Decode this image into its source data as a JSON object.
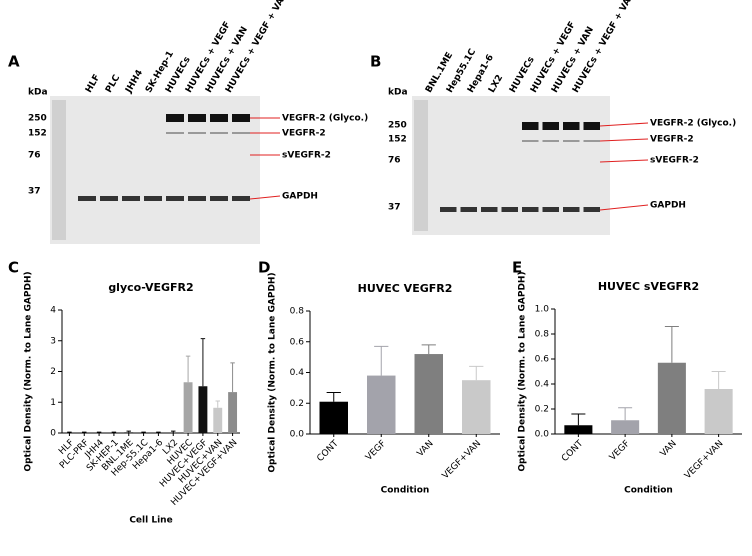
{
  "panel_labels": [
    "A",
    "B",
    "C",
    "D",
    "E"
  ],
  "blots": [
    {
      "lanes": [
        "HLF",
        "PLC",
        "JHH4",
        "SK-Hep-1",
        "HUVECs",
        "HUVECs + VEGF",
        "HUVECs + VAN",
        "HUVECs + VEGF + VAN"
      ],
      "kda_title": "kDa",
      "kda": [
        "250",
        "152",
        "76",
        "37"
      ],
      "bands": [
        "VEGFR-2 (Glyco.)",
        "VEGFR-2",
        "sVEGFR-2",
        "GAPDH"
      ]
    },
    {
      "lanes": [
        "BNL.1ME",
        "Hep55.1C",
        "Hepa1-6",
        "LX2",
        "HUVECs",
        "HUVECs + VEGF",
        "HUVECs + VAN",
        "HUVECs + VEGF + VAN"
      ],
      "kda_title": "kDa",
      "kda": [
        "250",
        "152",
        "76",
        "37"
      ],
      "bands": [
        "VEGFR-2 (Glyco.)",
        "VEGFR-2",
        "sVEGFR-2",
        "GAPDH"
      ]
    }
  ],
  "chart_data": [
    {
      "type": "bar",
      "title": "glyco-VEGFR2",
      "y_label": "Optical Density (Norm. to Lane GAPDH)",
      "x_label": "Cell Line",
      "categories": [
        "HLF",
        "PLC-PRF",
        "JHH4",
        "SK-HEP-1",
        "BNL.1ME",
        "Hep-55.1C",
        "Hepa1-6",
        "LX2",
        "HUVEC",
        "HUVEC+VEGF",
        "HUVEC+VAN",
        "HUVEC+VEGF+VAN"
      ],
      "values": [
        0.01,
        0.01,
        0.01,
        0.01,
        0.02,
        0.01,
        0.01,
        0.01,
        1.65,
        1.52,
        0.82,
        1.33
      ],
      "errors": [
        0.02,
        0.02,
        0.02,
        0.02,
        0.04,
        0.02,
        0.02,
        0.05,
        0.85,
        1.55,
        0.22,
        0.95
      ],
      "colors": [
        "#000000",
        "#000000",
        "#000000",
        "#000000",
        "#000000",
        "#000000",
        "#000000",
        "#000000",
        "#a6a6a6",
        "#111111",
        "#c8c8c8",
        "#8c8c8c"
      ],
      "ylim": [
        0,
        4
      ],
      "yticks": [
        0,
        1,
        2,
        3,
        4
      ]
    },
    {
      "type": "bar",
      "title": "HUVEC VEGFR2",
      "y_label": "Optical Density (Norm. to Lane GAPDH)",
      "x_label": "Condition",
      "categories": [
        "CONT",
        "VEGF",
        "VAN",
        "VEGF+VAN"
      ],
      "values": [
        0.21,
        0.38,
        0.52,
        0.35
      ],
      "errors": [
        0.06,
        0.19,
        0.06,
        0.09
      ],
      "colors": [
        "#000000",
        "#a3a3ab",
        "#7f7f7f",
        "#c9c9c9"
      ],
      "ylim": [
        0,
        0.8
      ],
      "yticks": [
        {
          "value": 0,
          "label": "0.0"
        },
        0.2,
        0.4,
        0.6,
        0.8
      ]
    },
    {
      "type": "bar",
      "title": "HUVEC sVEGFR2",
      "y_label": "Optical Density (Norm. to Lane GAPDH)",
      "x_label": "Condition",
      "categories": [
        "CONT",
        "VEGF",
        "VAN",
        "VEGF+VAN"
      ],
      "values": [
        0.07,
        0.11,
        0.57,
        0.36
      ],
      "errors": [
        0.09,
        0.1,
        0.29,
        0.14
      ],
      "colors": [
        "#000000",
        "#a3a3ab",
        "#7f7f7f",
        "#c9c9c9"
      ],
      "ylim": [
        0,
        1.0
      ],
      "yticks": [
        {
          "value": 0,
          "label": "0.0"
        },
        0.2,
        0.4,
        0.6,
        0.8,
        {
          "value": 1,
          "label": "1.0"
        }
      ]
    }
  ]
}
